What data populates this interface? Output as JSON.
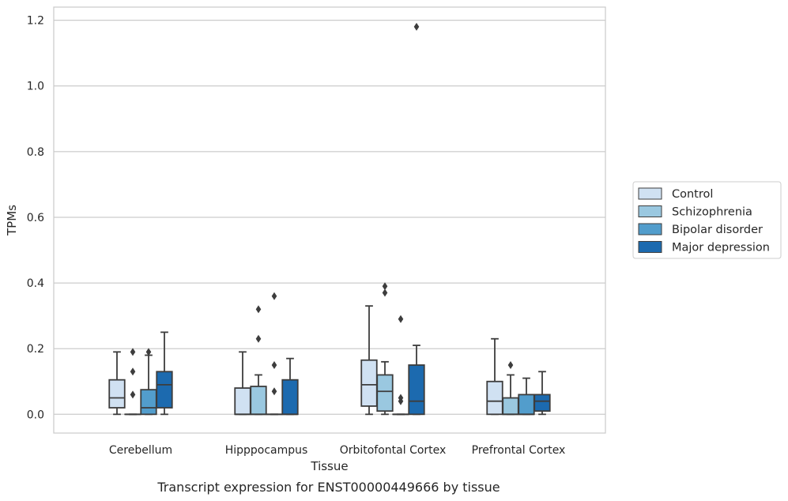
{
  "chart_data": {
    "type": "box",
    "caption": "Transcript expression for ENST00000449666 by tissue",
    "xlabel": "Tissue",
    "ylabel": "TPMs",
    "ylim": [
      -0.057,
      1.24
    ],
    "yticks": [
      "0.0",
      "0.2",
      "0.4",
      "0.6",
      "0.8",
      "1.0",
      "1.2"
    ],
    "ytick_values": [
      0.0,
      0.2,
      0.4,
      0.6,
      0.8,
      1.0,
      1.2
    ],
    "grid": true,
    "legend_position": "right",
    "categories": [
      "Cerebellum",
      "Hipppocampus",
      "Orbitofontal Cortex",
      "Prefrontal Cortex"
    ],
    "series": [
      {
        "name": "Control",
        "color": "#d0e1f2",
        "boxes": [
          {
            "whislo": 0.0,
            "q1": 0.02,
            "med": 0.05,
            "q3": 0.105,
            "whishi": 0.19,
            "fliers": []
          },
          {
            "whislo": 0.0,
            "q1": 0.0,
            "med": 0.0,
            "q3": 0.08,
            "whishi": 0.19,
            "fliers": []
          },
          {
            "whislo": 0.0,
            "q1": 0.025,
            "med": 0.09,
            "q3": 0.165,
            "whishi": 0.33,
            "fliers": []
          },
          {
            "whislo": 0.0,
            "q1": 0.0,
            "med": 0.04,
            "q3": 0.1,
            "whishi": 0.23,
            "fliers": []
          }
        ]
      },
      {
        "name": "Schizophrenia",
        "color": "#9ac8e0",
        "boxes": [
          {
            "whislo": 0.0,
            "q1": 0.0,
            "med": 0.0,
            "q3": 0.0,
            "whishi": 0.0,
            "fliers": [
              0.06,
              0.13,
              0.19
            ]
          },
          {
            "whislo": 0.0,
            "q1": 0.0,
            "med": 0.0,
            "q3": 0.085,
            "whishi": 0.12,
            "fliers": [
              0.23,
              0.32
            ]
          },
          {
            "whislo": 0.0,
            "q1": 0.01,
            "med": 0.07,
            "q3": 0.12,
            "whishi": 0.16,
            "fliers": [
              0.37,
              0.39
            ]
          },
          {
            "whislo": 0.0,
            "q1": 0.0,
            "med": 0.0,
            "q3": 0.05,
            "whishi": 0.12,
            "fliers": [
              0.15
            ]
          }
        ]
      },
      {
        "name": "Bipolar disorder",
        "color": "#529dcc",
        "boxes": [
          {
            "whislo": 0.0,
            "q1": 0.0,
            "med": 0.02,
            "q3": 0.075,
            "whishi": 0.18,
            "fliers": [
              0.19
            ]
          },
          {
            "whislo": 0.0,
            "q1": 0.0,
            "med": 0.0,
            "q3": 0.0,
            "whishi": 0.0,
            "fliers": [
              0.07,
              0.15,
              0.36
            ]
          },
          {
            "whislo": 0.0,
            "q1": 0.0,
            "med": 0.0,
            "q3": 0.0,
            "whishi": 0.0,
            "fliers": [
              0.04,
              0.05,
              0.29
            ]
          },
          {
            "whislo": 0.0,
            "q1": 0.0,
            "med": 0.0,
            "q3": 0.06,
            "whishi": 0.11,
            "fliers": []
          }
        ]
      },
      {
        "name": "Major depression",
        "color": "#1c6aaf",
        "boxes": [
          {
            "whislo": 0.0,
            "q1": 0.02,
            "med": 0.09,
            "q3": 0.13,
            "whishi": 0.25,
            "fliers": []
          },
          {
            "whislo": 0.0,
            "q1": 0.0,
            "med": 0.0,
            "q3": 0.105,
            "whishi": 0.17,
            "fliers": []
          },
          {
            "whislo": 0.0,
            "q1": 0.0,
            "med": 0.04,
            "q3": 0.15,
            "whishi": 0.21,
            "fliers": [
              1.18
            ]
          },
          {
            "whislo": 0.0,
            "q1": 0.01,
            "med": 0.04,
            "q3": 0.06,
            "whishi": 0.13,
            "fliers": []
          }
        ]
      }
    ]
  }
}
